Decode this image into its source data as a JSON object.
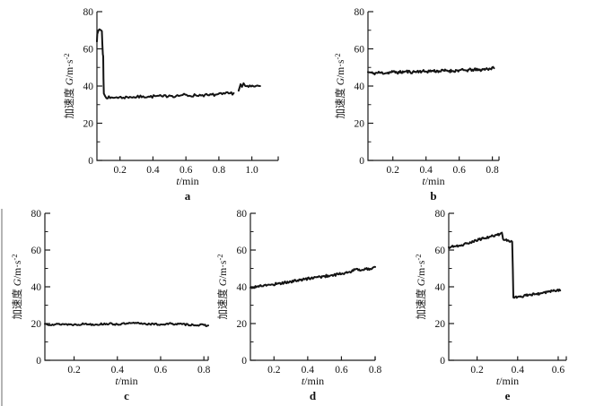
{
  "figure": {
    "background": "#ffffff",
    "curve_color": "#141414",
    "axis_color": "#1c1c1c",
    "text_color": "#111111",
    "ylabel_parts": {
      "prefix": "加速度 ",
      "var": "G",
      "rest": "/m·s",
      "sup": "-2"
    },
    "xlabel_parts": {
      "var": "t",
      "rest": "/min"
    }
  },
  "chart_data": [
    {
      "type": "line",
      "panel": "a",
      "xlabel": "t/min",
      "ylabel": "加速度 G/m·s⁻²",
      "xlim": [
        0.06,
        1.16
      ],
      "ylim": [
        0,
        80
      ],
      "xticks": [
        0.2,
        0.4,
        0.6,
        0.8,
        1.0
      ],
      "yticks": [
        0,
        20,
        40,
        60,
        80
      ],
      "yticks_minor": [
        10,
        30,
        50,
        70
      ],
      "noise": 0.8,
      "gaps": [
        [
          0.892,
          0.915
        ]
      ],
      "series": [
        {
          "name": "acceleration",
          "points": [
            [
              0.06,
              64
            ],
            [
              0.062,
              68
            ],
            [
              0.07,
              70
            ],
            [
              0.075,
              70.5
            ],
            [
              0.085,
              70
            ],
            [
              0.09,
              69.5
            ],
            [
              0.093,
              62
            ],
            [
              0.096,
              57
            ],
            [
              0.098,
              56
            ],
            [
              0.1,
              44
            ],
            [
              0.102,
              36
            ],
            [
              0.11,
              34.5
            ],
            [
              0.14,
              33.5
            ],
            [
              0.18,
              34
            ],
            [
              0.22,
              33.8
            ],
            [
              0.26,
              34.2
            ],
            [
              0.3,
              34
            ],
            [
              0.34,
              34.5
            ],
            [
              0.38,
              34.2
            ],
            [
              0.42,
              34.6
            ],
            [
              0.46,
              34.3
            ],
            [
              0.5,
              35
            ],
            [
              0.54,
              34.6
            ],
            [
              0.58,
              35.2
            ],
            [
              0.62,
              34.8
            ],
            [
              0.66,
              35
            ],
            [
              0.7,
              35.2
            ],
            [
              0.74,
              35
            ],
            [
              0.78,
              35.4
            ],
            [
              0.82,
              35.6
            ],
            [
              0.86,
              36
            ],
            [
              0.89,
              36.2
            ],
            [
              0.92,
              37.5
            ],
            [
              0.932,
              41
            ],
            [
              0.94,
              39.5
            ],
            [
              0.95,
              41.5
            ],
            [
              0.96,
              40
            ],
            [
              0.98,
              39.5
            ],
            [
              1.01,
              39.8
            ],
            [
              1.05,
              40
            ]
          ]
        }
      ]
    },
    {
      "type": "line",
      "panel": "b",
      "xlabel": "t/min",
      "ylabel": "加速度 G/m·s⁻²",
      "xlim": [
        0.05,
        0.84
      ],
      "ylim": [
        0,
        80
      ],
      "xticks": [
        0.2,
        0.4,
        0.6,
        0.8
      ],
      "yticks": [
        0,
        20,
        40,
        60,
        80
      ],
      "yticks_minor": [
        10,
        30,
        50,
        70
      ],
      "noise": 0.8,
      "gaps": [],
      "series": [
        {
          "name": "acceleration",
          "points": [
            [
              0.05,
              47.5
            ],
            [
              0.08,
              46.8
            ],
            [
              0.12,
              47.2
            ],
            [
              0.16,
              47.0
            ],
            [
              0.2,
              47.6
            ],
            [
              0.24,
              47.3
            ],
            [
              0.28,
              47.8
            ],
            [
              0.32,
              47.5
            ],
            [
              0.36,
              48.0
            ],
            [
              0.4,
              47.8
            ],
            [
              0.44,
              48.2
            ],
            [
              0.48,
              48.0
            ],
            [
              0.52,
              48.3
            ],
            [
              0.56,
              48.1
            ],
            [
              0.6,
              48.5
            ],
            [
              0.64,
              48.4
            ],
            [
              0.68,
              48.8
            ],
            [
              0.72,
              48.6
            ],
            [
              0.76,
              49.2
            ],
            [
              0.81,
              49.6
            ]
          ]
        }
      ]
    },
    {
      "type": "line",
      "panel": "c",
      "xlabel": "t/min",
      "ylabel": "加速度 G/m·s⁻²",
      "xlim": [
        0.065,
        0.82
      ],
      "ylim": [
        0,
        80
      ],
      "xticks": [
        0.2,
        0.4,
        0.6,
        0.8
      ],
      "yticks": [
        0,
        20,
        40,
        60,
        80
      ],
      "yticks_minor": [
        10,
        30,
        50,
        70
      ],
      "noise": 0.5,
      "gaps": [],
      "series": [
        {
          "name": "acceleration",
          "points": [
            [
              0.065,
              19.8
            ],
            [
              0.1,
              19.5
            ],
            [
              0.15,
              19.7
            ],
            [
              0.2,
              19.4
            ],
            [
              0.25,
              19.8
            ],
            [
              0.3,
              19.5
            ],
            [
              0.35,
              19.9
            ],
            [
              0.4,
              19.6
            ],
            [
              0.45,
              20.0
            ],
            [
              0.5,
              20.2
            ],
            [
              0.55,
              19.7
            ],
            [
              0.6,
              19.5
            ],
            [
              0.65,
              19.9
            ],
            [
              0.7,
              19.6
            ],
            [
              0.75,
              19.3
            ],
            [
              0.82,
              19.0
            ]
          ]
        }
      ]
    },
    {
      "type": "line",
      "panel": "d",
      "xlabel": "t/min",
      "ylabel": "加速度 G/m·s⁻²",
      "xlim": [
        0.06,
        0.8
      ],
      "ylim": [
        0,
        80
      ],
      "xticks": [
        0.2,
        0.4,
        0.6,
        0.8
      ],
      "yticks": [
        0,
        20,
        40,
        60,
        80
      ],
      "yticks_minor": [
        10,
        30,
        50,
        70
      ],
      "noise": 0.7,
      "gaps": [],
      "series": [
        {
          "name": "acceleration",
          "points": [
            [
              0.06,
              39.5
            ],
            [
              0.1,
              40.2
            ],
            [
              0.14,
              40.8
            ],
            [
              0.18,
              41.0
            ],
            [
              0.22,
              41.8
            ],
            [
              0.26,
              42.2
            ],
            [
              0.3,
              42.8
            ],
            [
              0.34,
              43.5
            ],
            [
              0.38,
              44.0
            ],
            [
              0.42,
              44.8
            ],
            [
              0.46,
              45.2
            ],
            [
              0.5,
              45.8
            ],
            [
              0.54,
              46.3
            ],
            [
              0.58,
              46.8
            ],
            [
              0.62,
              47.5
            ],
            [
              0.66,
              48.2
            ],
            [
              0.69,
              49.8
            ],
            [
              0.71,
              48.8
            ],
            [
              0.74,
              50.0
            ],
            [
              0.77,
              49.8
            ],
            [
              0.8,
              50.8
            ]
          ]
        }
      ]
    },
    {
      "type": "line",
      "panel": "e",
      "xlabel": "t/min",
      "ylabel": "加速度 G/m·s⁻²",
      "xlim": [
        0.06,
        0.64
      ],
      "ylim": [
        0,
        80
      ],
      "xticks": [
        0.2,
        0.4,
        0.6
      ],
      "yticks": [
        0,
        20,
        40,
        60,
        80
      ],
      "yticks_minor": [
        10,
        30,
        50,
        70
      ],
      "noise": 0.6,
      "gaps": [],
      "series": [
        {
          "name": "acceleration",
          "points": [
            [
              0.06,
              61.5
            ],
            [
              0.09,
              62.0
            ],
            [
              0.12,
              62.5
            ],
            [
              0.15,
              63.8
            ],
            [
              0.18,
              64.5
            ],
            [
              0.21,
              65.8
            ],
            [
              0.24,
              66.5
            ],
            [
              0.27,
              67.5
            ],
            [
              0.3,
              68.2
            ],
            [
              0.315,
              69.0
            ],
            [
              0.322,
              69.5
            ],
            [
              0.328,
              66.0
            ],
            [
              0.34,
              65.5
            ],
            [
              0.355,
              65.2
            ],
            [
              0.368,
              65.0
            ],
            [
              0.373,
              64.5
            ],
            [
              0.376,
              50.0
            ],
            [
              0.379,
              34.2
            ],
            [
              0.4,
              34.5
            ],
            [
              0.43,
              35.0
            ],
            [
              0.46,
              35.8
            ],
            [
              0.49,
              36.0
            ],
            [
              0.52,
              36.5
            ],
            [
              0.55,
              37.2
            ],
            [
              0.57,
              37.8
            ],
            [
              0.61,
              38.0
            ]
          ]
        }
      ]
    }
  ]
}
